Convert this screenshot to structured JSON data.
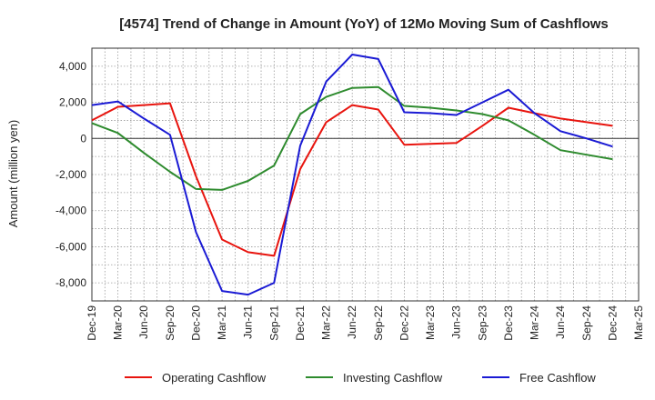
{
  "chart_data": {
    "type": "line",
    "title": "[4574]  Trend of Change in Amount (YoY) of 12Mo Moving Sum of Cashflows",
    "ylabel": "Amount (million yen)",
    "xlabel": "",
    "ylim": [
      -9000,
      5000
    ],
    "yticks": [
      4000,
      2000,
      0,
      -2000,
      -4000,
      -6000,
      -8000
    ],
    "ytick_labels": [
      "4,000",
      "2,000",
      "0",
      "-2,000",
      "-4,000",
      "-6,000",
      "-8,000"
    ],
    "categories": [
      "Dec-19",
      "Mar-20",
      "Jun-20",
      "Sep-20",
      "Dec-20",
      "Mar-21",
      "Jun-21",
      "Sep-21",
      "Dec-21",
      "Mar-22",
      "Jun-22",
      "Sep-22",
      "Dec-22",
      "Mar-23",
      "Jun-23",
      "Sep-23",
      "Dec-23",
      "Mar-24",
      "Jun-24",
      "Sep-24",
      "Dec-24",
      "Mar-25"
    ],
    "grid": true,
    "legend_position": "bottom",
    "series": [
      {
        "name": "Operating Cashflow",
        "color": "#e8140e",
        "values": [
          1000,
          1750,
          1850,
          1950,
          -2100,
          -5600,
          -6300,
          -6500,
          -1700,
          900,
          1850,
          1600,
          -350,
          -300,
          -250,
          700,
          1700,
          1400,
          1100,
          900,
          700,
          null
        ]
      },
      {
        "name": "Investing Cashflow",
        "color": "#2e8b2e",
        "values": [
          850,
          300,
          -800,
          -1850,
          -2800,
          -2850,
          -2350,
          -1500,
          1350,
          2300,
          2800,
          2850,
          1800,
          1700,
          1550,
          1350,
          1000,
          200,
          -650,
          -900,
          -1150,
          null
        ]
      },
      {
        "name": "Free Cashflow",
        "color": "#1a1ad4",
        "values": [
          1850,
          2050,
          1100,
          200,
          -5200,
          -8450,
          -8650,
          -8000,
          -400,
          3150,
          4650,
          4400,
          1450,
          1400,
          1300,
          2000,
          2700,
          1400,
          400,
          0,
          -450,
          null
        ]
      }
    ]
  }
}
